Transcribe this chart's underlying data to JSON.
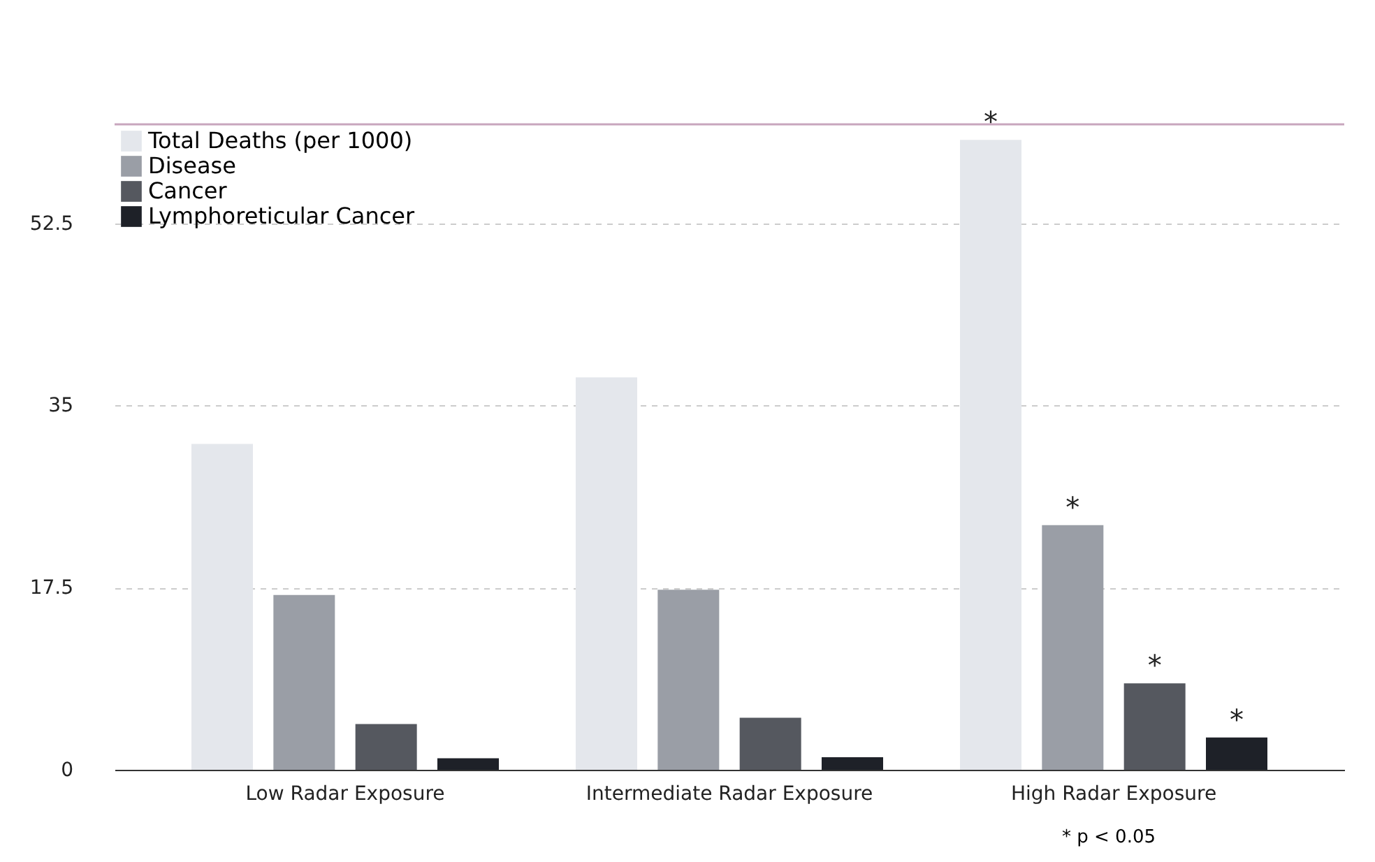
{
  "chart_data": {
    "type": "bar",
    "categories": [
      "Low Radar Exposure",
      "Intermediate Radar Exposure",
      "High Radar Exposure"
    ],
    "series": [
      {
        "name": "Total Deaths (per 1000)",
        "color": "#e4e7ec",
        "values": [
          31.3,
          37.7,
          60.5
        ]
      },
      {
        "name": "Disease",
        "color": "#9a9ea6",
        "values": [
          16.8,
          17.3,
          23.5
        ]
      },
      {
        "name": "Cancer",
        "color": "#55585f",
        "values": [
          4.4,
          5.0,
          8.3
        ]
      },
      {
        "name": "Lymphoreticular Cancer",
        "color": "#1e2128",
        "values": [
          1.1,
          1.2,
          3.1
        ]
      }
    ],
    "ylim": [
      0,
      62
    ],
    "ref_lines": [
      {
        "axis": "y",
        "value": 62,
        "color": "#c8a6bd"
      }
    ],
    "yticks": [
      0,
      17.5,
      35,
      52.5
    ],
    "grid": "y",
    "legend": "top left",
    "annotations": [
      "*",
      "*",
      "*",
      "*",
      "* p < 0.05"
    ]
  }
}
